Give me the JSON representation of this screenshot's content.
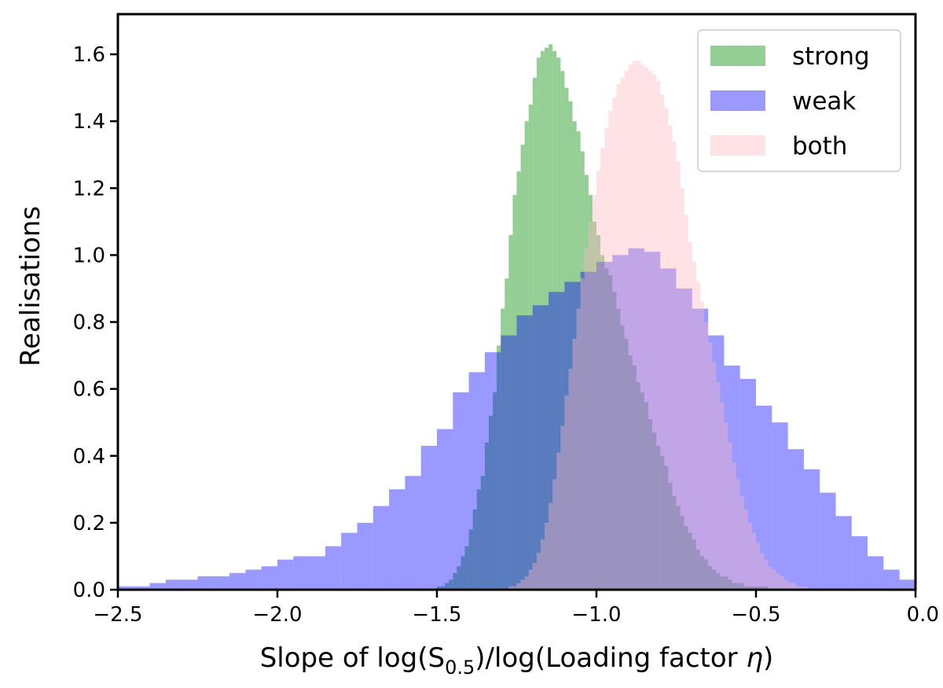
{
  "chart_data": {
    "type": "histogram",
    "xlabel_parts": {
      "pre": "Slope of log(S",
      "sub": "0.5",
      "mid": ")/log(Loading factor ",
      "sym": "η",
      "post": ")"
    },
    "ylabel": "Realisations",
    "xlim": [
      -2.5,
      0.0
    ],
    "ylim": [
      0.0,
      1.72
    ],
    "xticks": [
      -2.5,
      -2.0,
      -1.5,
      -1.0,
      -0.5,
      0.0
    ],
    "xtick_labels": [
      "−2.5",
      "−2.0",
      "−1.5",
      "−1.0",
      "−0.5",
      "0.0"
    ],
    "yticks": [
      0.0,
      0.2,
      0.4,
      0.6,
      0.8,
      1.0,
      1.2,
      1.4,
      1.6
    ],
    "ytick_labels": [
      "0.0",
      "0.2",
      "0.4",
      "0.6",
      "0.8",
      "1.0",
      "1.2",
      "1.4",
      "1.6"
    ],
    "grid": false,
    "legend_position": "top-right",
    "series": [
      {
        "name": "strong",
        "color": "#2ca02c",
        "opacity": 0.5,
        "bin_start": -2.0,
        "bin_width": 0.0125,
        "values": [
          0.0,
          0.0,
          0.0,
          0.0,
          0.0,
          0.0,
          0.0,
          0.0,
          0.0,
          0.0,
          0.0,
          0.0,
          0.0,
          0.0,
          0.0,
          0.0,
          0.0,
          0.0,
          0.0,
          0.0,
          0.0,
          0.0,
          0.0,
          0.0,
          0.0,
          0.0,
          0.0,
          0.0,
          0.0,
          0.0,
          0.0,
          0.0,
          0.0,
          0.0,
          0.0,
          0.0,
          0.0,
          0.0,
          0.0,
          0.0,
          0.01,
          0.01,
          0.02,
          0.03,
          0.05,
          0.07,
          0.1,
          0.13,
          0.18,
          0.24,
          0.3,
          0.34,
          0.44,
          0.52,
          0.59,
          0.73,
          0.84,
          0.93,
          1.06,
          1.18,
          1.25,
          1.33,
          1.4,
          1.45,
          1.53,
          1.59,
          1.61,
          1.62,
          1.63,
          1.61,
          1.59,
          1.55,
          1.5,
          1.46,
          1.4,
          1.37,
          1.31,
          1.24,
          1.18,
          1.1,
          1.06,
          1.0,
          0.96,
          0.94,
          0.89,
          0.84,
          0.79,
          0.75,
          0.7,
          0.67,
          0.62,
          0.59,
          0.56,
          0.51,
          0.47,
          0.43,
          0.4,
          0.37,
          0.32,
          0.28,
          0.25,
          0.22,
          0.19,
          0.17,
          0.15,
          0.12,
          0.1,
          0.09,
          0.07,
          0.06,
          0.05,
          0.04,
          0.04,
          0.03,
          0.02,
          0.02,
          0.02,
          0.01,
          0.01,
          0.01,
          0.01,
          0.01,
          0.01,
          0.0,
          0.0,
          0.0,
          0.0,
          0.0,
          0.0,
          0.0,
          0.0,
          0.0,
          0.0,
          0.0,
          0.0,
          0.0,
          0.0,
          0.0,
          0.0,
          0.0,
          0.0,
          0.0,
          0.0,
          0.0,
          0.0,
          0.0,
          0.0,
          0.0,
          0.0,
          0.0,
          0.0,
          0.0,
          0.0,
          0.0,
          0.0,
          0.0,
          0.0,
          0.0,
          0.0,
          0.0
        ]
      },
      {
        "name": "weak",
        "color": "#0000ff",
        "opacity": 0.4,
        "bin_start": -2.5,
        "bin_width": 0.05,
        "values": [
          0.01,
          0.01,
          0.02,
          0.03,
          0.03,
          0.04,
          0.04,
          0.05,
          0.06,
          0.07,
          0.09,
          0.1,
          0.1,
          0.13,
          0.17,
          0.2,
          0.25,
          0.3,
          0.34,
          0.43,
          0.48,
          0.59,
          0.65,
          0.71,
          0.76,
          0.82,
          0.85,
          0.89,
          0.92,
          0.95,
          0.98,
          1.0,
          1.02,
          1.01,
          0.96,
          0.9,
          0.84,
          0.76,
          0.67,
          0.63,
          0.55,
          0.5,
          0.42,
          0.36,
          0.29,
          0.22,
          0.16,
          0.1,
          0.06,
          0.03
        ]
      },
      {
        "name": "both",
        "color": "#ffb6c1",
        "opacity": 0.4,
        "bin_start": -2.0,
        "bin_width": 0.0125,
        "values": [
          0.0,
          0.0,
          0.0,
          0.0,
          0.0,
          0.0,
          0.0,
          0.0,
          0.0,
          0.0,
          0.0,
          0.0,
          0.0,
          0.0,
          0.0,
          0.0,
          0.0,
          0.0,
          0.0,
          0.0,
          0.0,
          0.0,
          0.0,
          0.0,
          0.0,
          0.0,
          0.0,
          0.0,
          0.0,
          0.0,
          0.0,
          0.0,
          0.0,
          0.0,
          0.0,
          0.0,
          0.0,
          0.0,
          0.0,
          0.0,
          0.0,
          0.0,
          0.0,
          0.0,
          0.0,
          0.0,
          0.0,
          0.0,
          0.0,
          0.0,
          0.0,
          0.0,
          0.0,
          0.0,
          0.0,
          0.0,
          0.0,
          0.0,
          0.01,
          0.01,
          0.02,
          0.03,
          0.04,
          0.06,
          0.08,
          0.11,
          0.15,
          0.2,
          0.26,
          0.33,
          0.41,
          0.49,
          0.58,
          0.66,
          0.75,
          0.84,
          0.93,
          1.02,
          1.1,
          1.18,
          1.25,
          1.32,
          1.38,
          1.43,
          1.47,
          1.51,
          1.53,
          1.55,
          1.57,
          1.58,
          1.58,
          1.57,
          1.56,
          1.55,
          1.54,
          1.52,
          1.48,
          1.44,
          1.39,
          1.34,
          1.28,
          1.2,
          1.12,
          1.04,
          0.98,
          0.92,
          0.86,
          0.8,
          0.74,
          0.68,
          0.62,
          0.56,
          0.5,
          0.44,
          0.38,
          0.33,
          0.28,
          0.24,
          0.2,
          0.17,
          0.14,
          0.11,
          0.09,
          0.07,
          0.06,
          0.05,
          0.04,
          0.03,
          0.02,
          0.02,
          0.01,
          0.01,
          0.01,
          0.0,
          0.0,
          0.0,
          0.0,
          0.0,
          0.0,
          0.0,
          0.0,
          0.0,
          0.0,
          0.0,
          0.0,
          0.0,
          0.0,
          0.0,
          0.0,
          0.0,
          0.0,
          0.0,
          0.0,
          0.0,
          0.0,
          0.0,
          0.0,
          0.0,
          0.0,
          0.0
        ]
      }
    ],
    "legend_order": [
      "strong",
      "weak",
      "both"
    ]
  }
}
